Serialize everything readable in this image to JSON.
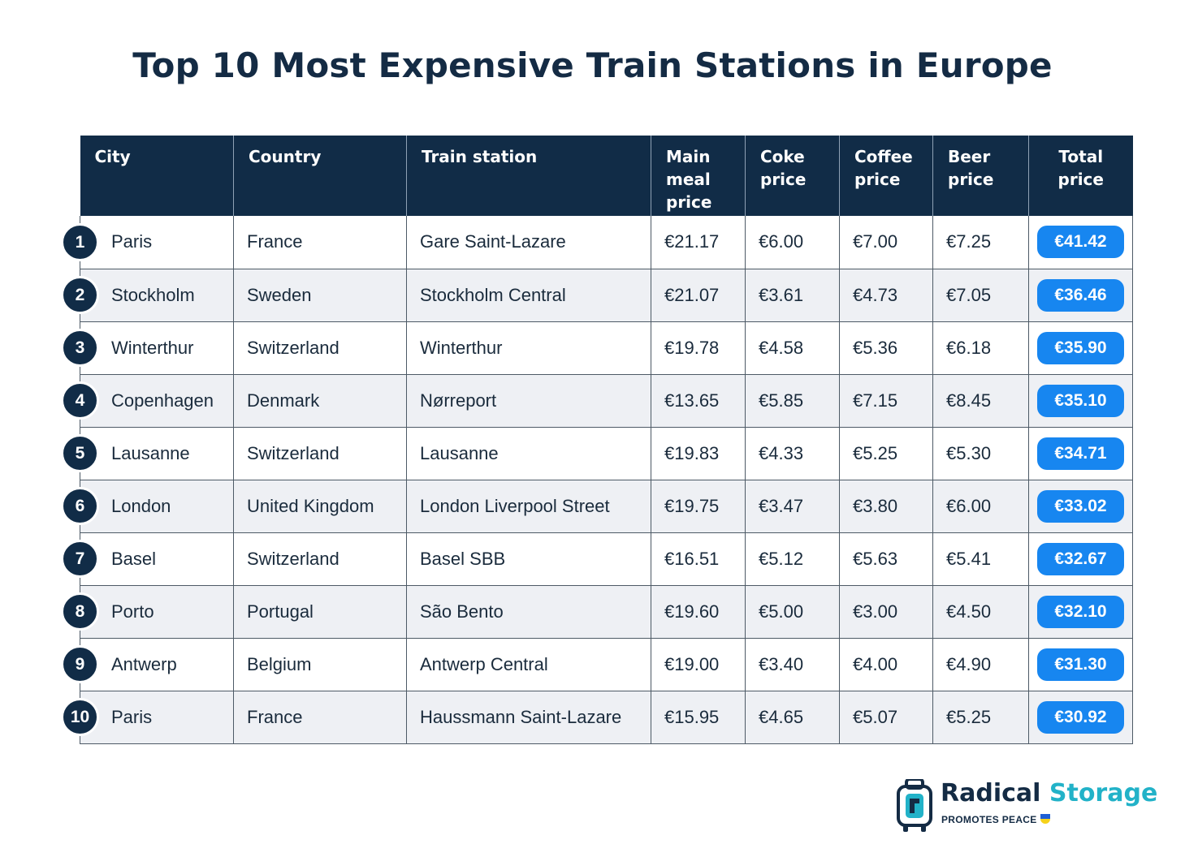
{
  "title": "Top 10 Most Expensive Train Stations in Europe",
  "colors": {
    "header_bg": "#112c47",
    "total_pill": "#1786f0",
    "row_alt": "#eef0f4",
    "brand_dark": "#142b44",
    "brand_light": "#22b2c8"
  },
  "chart_data": {
    "type": "table",
    "columns": [
      "City",
      "Country",
      "Train station",
      "Main meal price",
      "Coke price",
      "Coffee price",
      "Beer price",
      "Total price"
    ],
    "rows": [
      {
        "rank": "1",
        "city": "Paris",
        "country": "France",
        "station": "Gare Saint-Lazare",
        "meal": "€21.17",
        "coke": "€6.00",
        "coffee": "€7.00",
        "beer": "€7.25",
        "total": "€41.42"
      },
      {
        "rank": "2",
        "city": "Stockholm",
        "country": "Sweden",
        "station": "Stockholm Central",
        "meal": "€21.07",
        "coke": "€3.61",
        "coffee": "€4.73",
        "beer": "€7.05",
        "total": "€36.46"
      },
      {
        "rank": "3",
        "city": "Winterthur",
        "country": "Switzerland",
        "station": "Winterthur",
        "meal": "€19.78",
        "coke": "€4.58",
        "coffee": "€5.36",
        "beer": "€6.18",
        "total": "€35.90"
      },
      {
        "rank": "4",
        "city": "Copenhagen",
        "country": "Denmark",
        "station": "Nørreport",
        "meal": "€13.65",
        "coke": "€5.85",
        "coffee": "€7.15",
        "beer": "€8.45",
        "total": "€35.10"
      },
      {
        "rank": "5",
        "city": "Lausanne",
        "country": "Switzerland",
        "station": "Lausanne",
        "meal": "€19.83",
        "coke": "€4.33",
        "coffee": "€5.25",
        "beer": "€5.30",
        "total": "€34.71"
      },
      {
        "rank": "6",
        "city": "London",
        "country": "United Kingdom",
        "station": "London Liverpool Street",
        "meal": "€19.75",
        "coke": "€3.47",
        "coffee": "€3.80",
        "beer": "€6.00",
        "total": "€33.02"
      },
      {
        "rank": "7",
        "city": "Basel",
        "country": "Switzerland",
        "station": "Basel SBB",
        "meal": "€16.51",
        "coke": "€5.12",
        "coffee": "€5.63",
        "beer": "€5.41",
        "total": "€32.67"
      },
      {
        "rank": "8",
        "city": "Porto",
        "country": "Portugal",
        "station": "São Bento",
        "meal": "€19.60",
        "coke": "€5.00",
        "coffee": "€3.00",
        "beer": "€4.50",
        "total": "€32.10"
      },
      {
        "rank": "9",
        "city": "Antwerp",
        "country": "Belgium",
        "station": "Antwerp Central",
        "meal": "€19.00",
        "coke": "€3.40",
        "coffee": "€4.00",
        "beer": "€4.90",
        "total": "€31.30"
      },
      {
        "rank": "10",
        "city": "Paris",
        "country": "France",
        "station": "Haussmann Saint-Lazare",
        "meal": "€15.95",
        "coke": "€4.65",
        "coffee": "€5.07",
        "beer": "€5.25",
        "total": "€30.92"
      }
    ]
  },
  "logo": {
    "icon": "suitcase-icon",
    "brand_part1": "Radical",
    "brand_part2": "Storage",
    "tagline": "PROMOTES PEACE",
    "flag_colors": [
      "#1f5fd6",
      "#f6d21a"
    ]
  }
}
